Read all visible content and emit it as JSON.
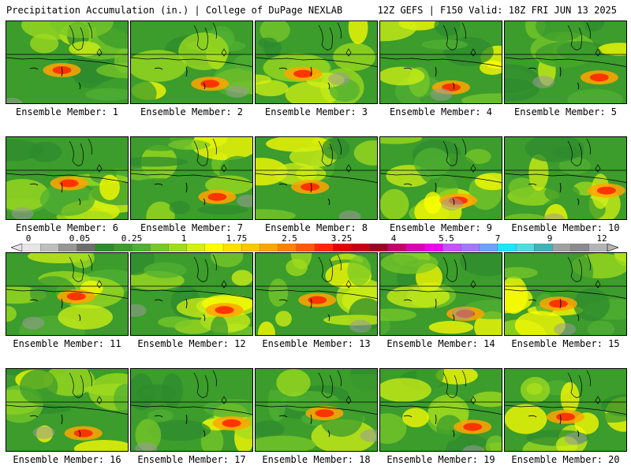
{
  "header": {
    "title_left": "Precipitation Accumulation (in.) | College of DuPage NEXLAB",
    "title_right": "12Z GEFS | F150 Valid: 18Z FRI JUN 13 2025"
  },
  "colorbar": {
    "labels": [
      "0",
      "0.05",
      "0.25",
      "1",
      "1.75",
      "2.5",
      "3.25",
      "4",
      "5.5",
      "7",
      "9",
      "12"
    ],
    "colors": [
      "#e6e6e6",
      "#bebebe",
      "#969696",
      "#6e6e6e",
      "#2e8b2e",
      "#3c9c2c",
      "#50b032",
      "#78c828",
      "#a0dc1e",
      "#d2f014",
      "#ffff00",
      "#ffe100",
      "#ffc800",
      "#ffa500",
      "#ff8200",
      "#ff5a00",
      "#ff2800",
      "#e60000",
      "#c80014",
      "#a00028",
      "#c8006e",
      "#dc00b4",
      "#f000f0",
      "#c850ff",
      "#a078ff",
      "#6ea0ff",
      "#1ee6ff",
      "#50dcdc",
      "#3cb4b4",
      "#a0a0a0",
      "#8c8c8c",
      "#b4b4b4"
    ]
  },
  "panels": [
    {
      "caption": "Ensemble Member: 1"
    },
    {
      "caption": "Ensemble Member: 2"
    },
    {
      "caption": "Ensemble Member: 3"
    },
    {
      "caption": "Ensemble Member: 4"
    },
    {
      "caption": "Ensemble Member: 5"
    },
    {
      "caption": "Ensemble Member: 6"
    },
    {
      "caption": "Ensemble Member: 7"
    },
    {
      "caption": "Ensemble Member: 8"
    },
    {
      "caption": "Ensemble Member: 9"
    },
    {
      "caption": "Ensemble Member: 10"
    },
    {
      "caption": "Ensemble Member: 11"
    },
    {
      "caption": "Ensemble Member: 12"
    },
    {
      "caption": "Ensemble Member: 13"
    },
    {
      "caption": "Ensemble Member: 14"
    },
    {
      "caption": "Ensemble Member: 15"
    },
    {
      "caption": "Ensemble Member: 16"
    },
    {
      "caption": "Ensemble Member: 17"
    },
    {
      "caption": "Ensemble Member: 18"
    },
    {
      "caption": "Ensemble Member: 19"
    },
    {
      "caption": "Ensemble Member: 20"
    }
  ]
}
